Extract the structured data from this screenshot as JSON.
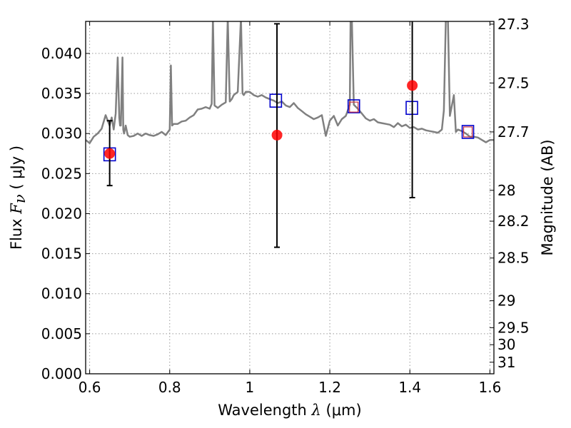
{
  "chart_data": {
    "type": "scatter",
    "title": "",
    "xlabel": {
      "prefix": "Wavelength ",
      "symbol": "λ",
      "unit": " (μm)"
    },
    "ylabel": {
      "prefix": "Flux ",
      "symbol": "F",
      "subscript": "ν",
      "unit": " ( μJy )"
    },
    "y2label": "Magnitude (AB)",
    "xlim": [
      0.59,
      1.61
    ],
    "ylim": [
      0.0,
      0.044
    ],
    "grid": true,
    "x_ticks": [
      {
        "value": 0.6,
        "label": "0.6"
      },
      {
        "value": 0.8,
        "label": "0.8"
      },
      {
        "value": 1.0,
        "label": "1"
      },
      {
        "value": 1.2,
        "label": "1.2"
      },
      {
        "value": 1.4,
        "label": "1.4"
      },
      {
        "value": 1.6,
        "label": "1.6"
      }
    ],
    "y_ticks": [
      {
        "value": 0.0,
        "label": "0.000"
      },
      {
        "value": 0.005,
        "label": "0.005"
      },
      {
        "value": 0.01,
        "label": "0.010"
      },
      {
        "value": 0.015,
        "label": "0.015"
      },
      {
        "value": 0.02,
        "label": "0.020"
      },
      {
        "value": 0.025,
        "label": "0.025"
      },
      {
        "value": 0.03,
        "label": "0.030"
      },
      {
        "value": 0.035,
        "label": "0.035"
      },
      {
        "value": 0.04,
        "label": "0.040"
      }
    ],
    "y2_ticks": [
      {
        "mag": 27.3,
        "label": "27.3"
      },
      {
        "mag": 27.5,
        "label": "27.5"
      },
      {
        "mag": 27.7,
        "label": "27.7"
      },
      {
        "mag": 28.0,
        "label": "28"
      },
      {
        "mag": 28.2,
        "label": "28.2"
      },
      {
        "mag": 28.5,
        "label": "28.5"
      },
      {
        "mag": 29.0,
        "label": "29"
      },
      {
        "mag": 29.5,
        "label": "29.5"
      },
      {
        "mag": 30.0,
        "label": "30"
      },
      {
        "mag": 31.0,
        "label": "31"
      }
    ],
    "colors": {
      "spectrum": "#808080",
      "observed": "#ff0000",
      "model_box": "#0000cc",
      "model_inner": "#cc3344",
      "errorbar": "#000000",
      "grid": "#999999"
    },
    "series": [
      {
        "kind": "spectrum",
        "x": [
          0.59,
          0.6,
          0.61,
          0.62,
          0.63,
          0.64,
          0.65,
          0.655,
          0.66,
          0.665,
          0.67,
          0.674,
          0.676,
          0.678,
          0.682,
          0.684,
          0.686,
          0.69,
          0.695,
          0.7,
          0.71,
          0.72,
          0.73,
          0.74,
          0.75,
          0.76,
          0.77,
          0.78,
          0.79,
          0.8,
          0.803,
          0.806,
          0.81,
          0.82,
          0.83,
          0.84,
          0.85,
          0.86,
          0.87,
          0.88,
          0.89,
          0.9,
          0.905,
          0.908,
          0.912,
          0.92,
          0.93,
          0.94,
          0.945,
          0.95,
          0.955,
          0.96,
          0.97,
          0.978,
          0.982,
          0.985,
          0.99,
          1.0,
          1.01,
          1.02,
          1.03,
          1.04,
          1.05,
          1.06,
          1.07,
          1.08,
          1.09,
          1.1,
          1.11,
          1.12,
          1.13,
          1.14,
          1.15,
          1.16,
          1.17,
          1.18,
          1.19,
          1.2,
          1.21,
          1.22,
          1.23,
          1.24,
          1.25,
          1.252,
          1.255,
          1.26,
          1.27,
          1.28,
          1.29,
          1.3,
          1.31,
          1.32,
          1.33,
          1.34,
          1.35,
          1.36,
          1.37,
          1.38,
          1.39,
          1.4,
          1.41,
          1.42,
          1.43,
          1.44,
          1.45,
          1.46,
          1.47,
          1.48,
          1.485,
          1.49,
          1.495,
          1.5,
          1.51,
          1.515,
          1.52,
          1.53,
          1.54,
          1.55,
          1.56,
          1.57,
          1.58,
          1.59,
          1.6,
          1.61
        ],
        "y": [
          0.0292,
          0.0288,
          0.0296,
          0.03,
          0.0306,
          0.0323,
          0.031,
          0.032,
          0.0305,
          0.0325,
          0.0395,
          0.032,
          0.031,
          0.031,
          0.0395,
          0.0305,
          0.03,
          0.031,
          0.0298,
          0.0296,
          0.0297,
          0.03,
          0.0297,
          0.03,
          0.0298,
          0.0297,
          0.0299,
          0.0302,
          0.0298,
          0.0305,
          0.0385,
          0.031,
          0.0312,
          0.0312,
          0.0315,
          0.0316,
          0.032,
          0.0323,
          0.033,
          0.0331,
          0.0333,
          0.0331,
          0.0337,
          0.0445,
          0.0335,
          0.0332,
          0.0336,
          0.0339,
          0.0445,
          0.034,
          0.0343,
          0.0348,
          0.0352,
          0.0445,
          0.035,
          0.0348,
          0.0352,
          0.0352,
          0.0348,
          0.0346,
          0.0348,
          0.0345,
          0.0343,
          0.0341,
          0.0338,
          0.034,
          0.0335,
          0.0333,
          0.0338,
          0.0332,
          0.0328,
          0.0324,
          0.0321,
          0.0318,
          0.032,
          0.0323,
          0.0297,
          0.0316,
          0.0322,
          0.031,
          0.0318,
          0.0322,
          0.0336,
          0.0445,
          0.0445,
          0.0336,
          0.0331,
          0.0325,
          0.0319,
          0.0316,
          0.0318,
          0.0314,
          0.0313,
          0.0312,
          0.0311,
          0.0308,
          0.0313,
          0.0309,
          0.0311,
          0.0307,
          0.0308,
          0.0305,
          0.0306,
          0.0304,
          0.0303,
          0.0302,
          0.0301,
          0.0305,
          0.0329,
          0.0445,
          0.0445,
          0.0322,
          0.0348,
          0.0302,
          0.0305,
          0.0303,
          0.03,
          0.0296,
          0.0296,
          0.0295,
          0.0292,
          0.0289,
          0.0292,
          0.0292
        ]
      },
      {
        "kind": "model",
        "name": "",
        "points": [
          {
            "x": 0.65,
            "y": 0.0274
          },
          {
            "x": 1.065,
            "y": 0.0341
          },
          {
            "x": 1.26,
            "y": 0.0334
          },
          {
            "x": 1.405,
            "y": 0.0332
          },
          {
            "x": 1.545,
            "y": 0.0302
          }
        ],
        "inner_points": [
          {
            "x": 1.26,
            "y": 0.0333
          },
          {
            "x": 1.545,
            "y": 0.0302
          }
        ]
      },
      {
        "kind": "observed",
        "name": "",
        "points": [
          {
            "x": 0.65,
            "y": 0.0275,
            "y_low": 0.0235,
            "y_high": 0.0316
          },
          {
            "x": 1.068,
            "y": 0.0298,
            "y_low": 0.0158,
            "y_high": 0.0437
          },
          {
            "x": 1.406,
            "y": 0.036,
            "y_low": 0.022,
            "y_high": 0.0445
          }
        ]
      }
    ]
  }
}
